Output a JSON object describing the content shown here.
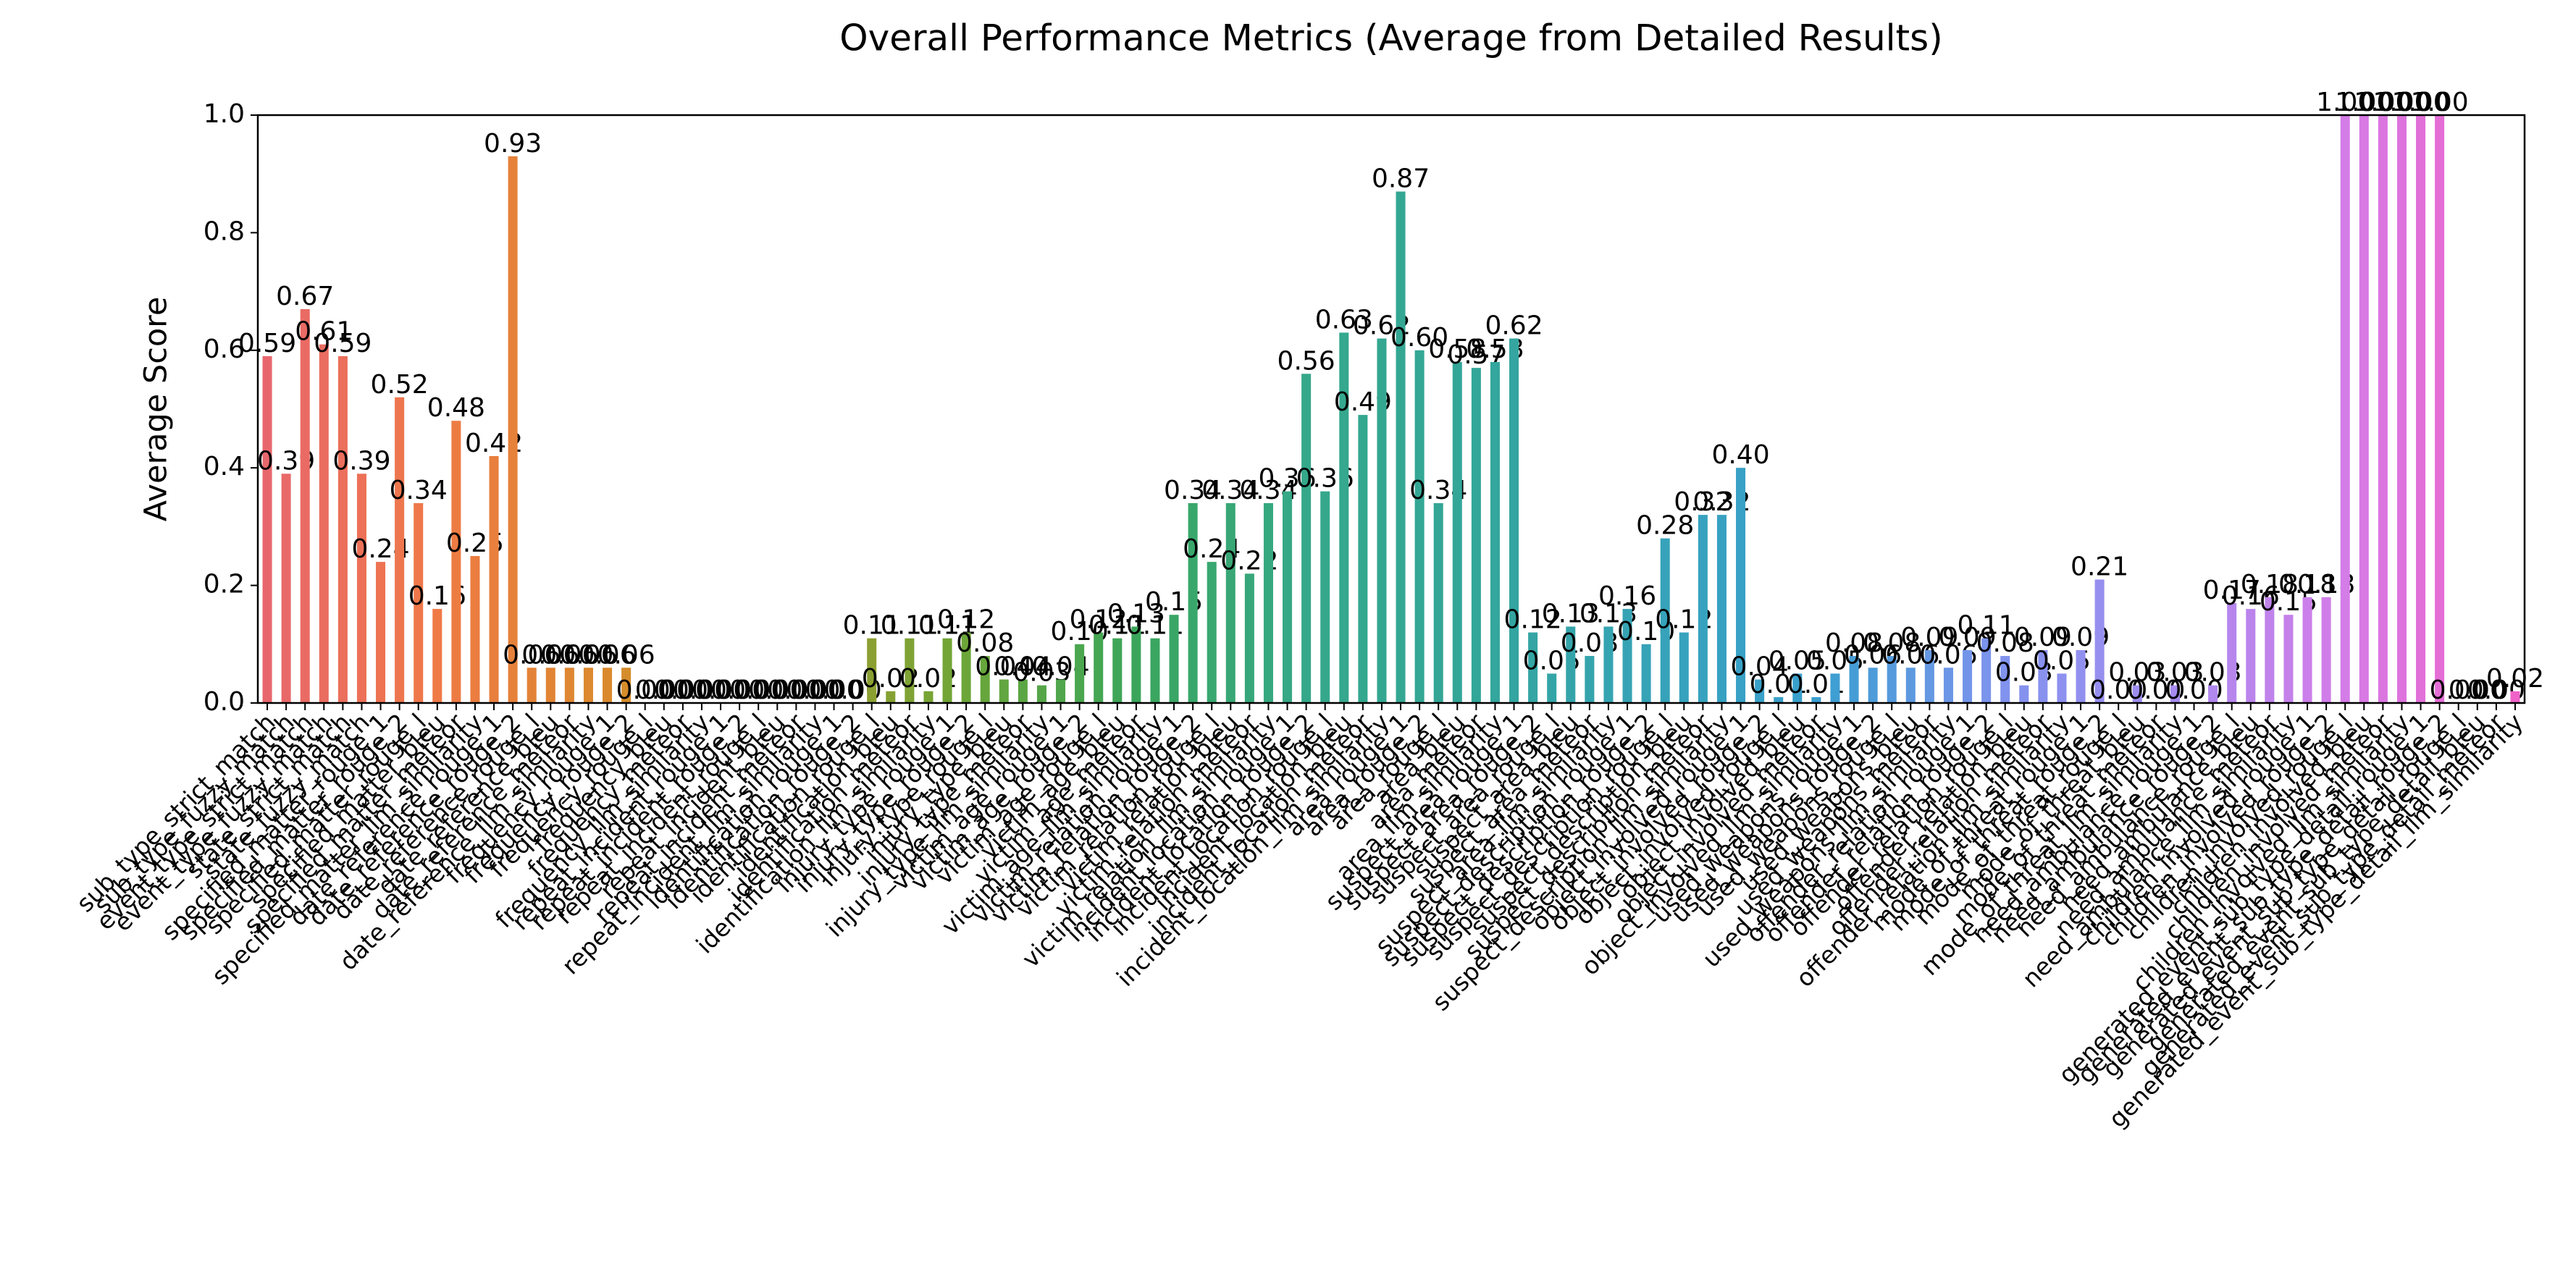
{
  "chart_data": {
    "type": "bar",
    "title": "Overall Performance Metrics (Average from Detailed Results)",
    "ylabel": "Average Score",
    "categories": [
      "sub_type_strict_match",
      "sub_type_fuzzy_match",
      "event_type_strict_match",
      "event_type_fuzzy_match",
      "state_strict_match",
      "state_fuzzy_match",
      "specified_matter_rouge_1",
      "specified_matter_rouge_2",
      "specified_matter_rouge_l",
      "specified_matter_bleu",
      "specified_matter_meteor",
      "specified_matter_llm_similarity",
      "date_reference_rouge_1",
      "date_reference_rouge_2",
      "date_reference_rouge_l",
      "date_reference_bleu",
      "date_reference_meteor",
      "date_reference_llm_similarity",
      "frequency_rouge_1",
      "frequency_rouge_2",
      "frequency_rouge_l",
      "frequency_bleu",
      "frequency_meteor",
      "frequency_llm_similarity",
      "repeat_incident_rouge_1",
      "repeat_incident_rouge_2",
      "repeat_incident_rouge_l",
      "repeat_incident_bleu",
      "repeat_incident_meteor",
      "repeat_incident_llm_similarity",
      "identification_rouge_1",
      "identification_rouge_2",
      "identification_rouge_l",
      "identification_bleu",
      "identification_meteor",
      "identification_llm_similarity",
      "injury_type_rouge_1",
      "injury_type_rouge_2",
      "injury_type_rouge_l",
      "injury_type_bleu",
      "injury_type_meteor",
      "injury_type_llm_similarity",
      "victim_age_rouge_1",
      "victim_age_rouge_2",
      "victim_age_rouge_l",
      "victim_age_bleu",
      "victim_age_meteor",
      "victim_age_llm_similarity",
      "victim_relation_rouge_1",
      "victim_relation_rouge_2",
      "victim_relation_rouge_l",
      "victim_relation_bleu",
      "victim_relation_meteor",
      "victim_relation_llm_similarity",
      "incident_location_rouge_1",
      "incident_location_rouge_2",
      "incident_location_rouge_l",
      "incident_location_bleu",
      "incident_location_meteor",
      "incident_location_llm_similarity",
      "area_rouge_1",
      "area_rouge_2",
      "area_rouge_l",
      "area_bleu",
      "area_meteor",
      "area_llm_similarity",
      "suspect_area_rouge_1",
      "suspect_area_rouge_2",
      "suspect_area_rouge_l",
      "suspect_area_bleu",
      "suspect_area_meteor",
      "suspect_area_llm_similarity",
      "suspect_description_rouge_1",
      "suspect_description_rouge_2",
      "suspect_description_rouge_l",
      "suspect_description_bleu",
      "suspect_description_meteor",
      "suspect_description_llm_similarity",
      "object_involved_rouge_1",
      "object_involved_rouge_2",
      "object_involved_rouge_l",
      "object_involved_bleu",
      "object_involved_meteor",
      "object_involved_llm_similarity",
      "used_weapons_rouge_1",
      "used_weapons_rouge_2",
      "used_weapons_rouge_l",
      "used_weapons_bleu",
      "used_weapons_meteor",
      "used_weapons_llm_similarity",
      "offender_relation_rouge_1",
      "offender_relation_rouge_2",
      "offender_relation_rouge_l",
      "offender_relation_bleu",
      "offender_relation_meteor",
      "offender_relation_llm_similarity",
      "mode_of_threat_rouge_1",
      "mode_of_threat_rouge_2",
      "mode_of_threat_rouge_l",
      "mode_of_threat_bleu",
      "mode_of_threat_meteor",
      "mode_of_threat_llm_similarity",
      "need_ambulance_rouge_1",
      "need_ambulance_rouge_2",
      "need_ambulance_rouge_l",
      "need_ambulance_bleu",
      "need_ambulance_meteor",
      "need_ambulance_llm_similarity",
      "children_involved_rouge_1",
      "children_involved_rouge_2",
      "children_involved_rouge_l",
      "children_involved_bleu",
      "children_involved_meteor",
      "children_involved_llm_similarity",
      "generated_event_sub_type_detail_rouge_1",
      "generated_event_sub_type_detail_rouge_2",
      "generated_event_sub_type_detail_rouge_l",
      "generated_event_sub_type_detail_bleu",
      "generated_event_sub_type_detail_meteor",
      "generated_event_sub_type_detail_llm_similarity"
    ],
    "values": [
      0.59,
      0.39,
      0.67,
      0.61,
      0.59,
      0.39,
      0.24,
      0.52,
      0.34,
      0.16,
      0.48,
      0.25,
      0.42,
      0.93,
      0.06,
      0.06,
      0.06,
      0.06,
      0.06,
      0.06,
      0,
      0,
      0,
      0,
      0,
      0,
      0,
      0,
      0,
      0,
      0,
      0,
      0.11,
      0.02,
      0.11,
      0.02,
      0.11,
      0.12,
      0.08,
      0.04,
      0.04,
      0.03,
      0.04,
      0.1,
      0.12,
      0.11,
      0.13,
      0.11,
      0.15,
      0.34,
      0.24,
      0.34,
      0.22,
      0.34,
      0.36,
      0.56,
      0.36,
      0.63,
      0.49,
      0.62,
      0.87,
      0.6,
      0.34,
      0.58,
      0.57,
      0.58,
      0.62,
      0.12,
      0.05,
      0.13,
      0.08,
      0.13,
      0.16,
      0.1,
      0.28,
      0.12,
      0.32,
      0.32,
      0.4,
      0.04,
      0.01,
      0.05,
      0.01,
      0.05,
      0.08,
      0.06,
      0.08,
      0.06,
      0.09,
      0.06,
      0.09,
      0.11,
      0.08,
      0.03,
      0.09,
      0.05,
      0.09,
      0.21,
      0,
      0.03,
      0,
      0.03,
      0,
      0.03,
      0.17,
      0.16,
      0.18,
      0.15,
      0.18,
      0.18,
      1,
      1,
      1,
      1,
      1,
      1,
      0,
      0,
      0,
      0.02
    ],
    "value_labels": [
      "0.59",
      "0.39",
      "0.67",
      "0.61",
      "0.59",
      "0.39",
      "0.24",
      "0.52",
      "0.34",
      "0.16",
      "0.48",
      "0.25",
      "0.42",
      "0.93",
      "0.06",
      "0.06",
      "0.06",
      "0.06",
      "0.06",
      "0.06",
      "0.00",
      "0.00",
      "0.00",
      "0.00",
      "0.00",
      "0.00",
      "0.00",
      "0.00",
      "0.00",
      "0.00",
      "0.00",
      "0.00",
      "0.11",
      "0.02",
      "0.11",
      "0.02",
      "0.11",
      "0.12",
      "0.08",
      "0.04",
      "0.04",
      "0.03",
      "0.04",
      "0.10",
      "0.12",
      "0.11",
      "0.13",
      "0.11",
      "0.15",
      "0.34",
      "0.24",
      "0.34",
      "0.22",
      "0.34",
      "0.36",
      "0.56",
      "0.36",
      "0.63",
      "0.49",
      "0.62",
      "0.87",
      "0.60",
      "0.34",
      "0.58",
      "0.57",
      "0.58",
      "0.62",
      "0.12",
      "0.05",
      "0.13",
      "0.08",
      "0.13",
      "0.16",
      "0.10",
      "0.28",
      "0.12",
      "0.32",
      "0.32",
      "0.40",
      "0.04",
      "0.01",
      "0.05",
      "0.01",
      "0.05",
      "0.08",
      "0.06",
      "0.08",
      "0.06",
      "0.09",
      "0.06",
      "0.09",
      "0.11",
      "0.08",
      "0.03",
      "0.09",
      "0.05",
      "0.09",
      "0.21",
      "0.00",
      "0.03",
      "0.00",
      "0.03",
      "0.00",
      "0.03",
      "0.17",
      "0.16",
      "0.18",
      "0.15",
      "0.18",
      "0.18",
      "1.00",
      "1.00",
      "1.00",
      "1.00",
      "1.00",
      "1.00",
      "0.00",
      "0.00",
      "0.00",
      "0.02"
    ],
    "palette": [
      "#e8676d",
      "#ef7a45",
      "#d98b2b",
      "#a89a2c",
      "#6ea637",
      "#3ba65a",
      "#35a88a",
      "#33a69a",
      "#36a3b8",
      "#3a9fd0",
      "#7f93ee",
      "#a58cf0",
      "#d47ce8",
      "#f062c8"
    ],
    "ylim": [
      0,
      1
    ],
    "yticks": [
      {
        "value": 0,
        "label": "0.0"
      },
      0.2,
      0.4,
      0.6,
      0.8,
      {
        "value": 1,
        "label": "1.0"
      }
    ],
    "grid": false
  }
}
